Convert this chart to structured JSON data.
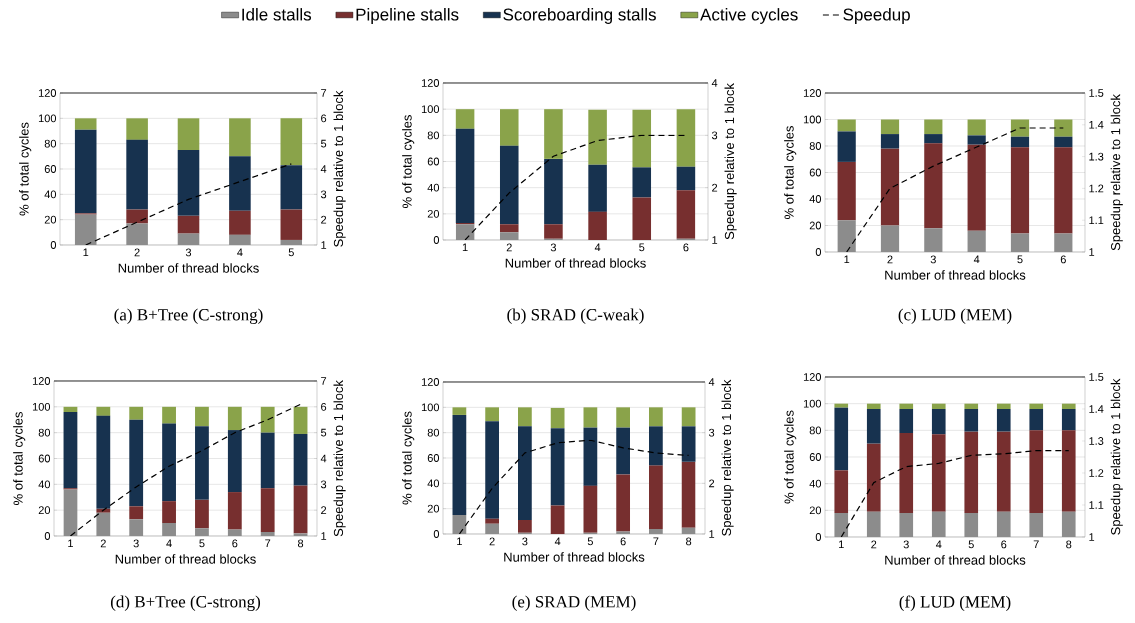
{
  "chart_data": [
    {
      "type": "bar",
      "stacked": true,
      "title": "(a) B+Tree (C-strong)",
      "xlabel": "Number of thread blocks",
      "ylabel": "% of total cycles",
      "y2label": "Speedup relative to 1 block",
      "categories": [
        "1",
        "2",
        "3",
        "4",
        "5"
      ],
      "ylim": [
        0,
        120
      ],
      "yticks": [
        0,
        20,
        40,
        60,
        80,
        100,
        120
      ],
      "y2lim": [
        1,
        7
      ],
      "y2ticks": [
        1,
        2,
        3,
        4,
        5,
        6,
        7
      ],
      "grid": "y",
      "legend": "top",
      "series": [
        {
          "name": "Idle stalls",
          "color": "#8c8c8c",
          "values": [
            24,
            17,
            9,
            8,
            4
          ]
        },
        {
          "name": "Pipeline stalls",
          "color": "#772f2f",
          "values": [
            1,
            11,
            14,
            19,
            24
          ]
        },
        {
          "name": "Scoreboarding stalls",
          "color": "#17324f",
          "values": [
            66,
            55,
            52,
            43,
            35
          ]
        },
        {
          "name": "Active cycles",
          "color": "#8aa34a",
          "values": [
            9,
            17,
            25,
            30,
            37
          ]
        },
        {
          "name": "Speedup",
          "type": "line",
          "axis": "y2",
          "color": "#000000",
          "line_style": "dashed",
          "marker": "none",
          "values": [
            1,
            1.9,
            2.8,
            3.5,
            4.2
          ]
        }
      ]
    },
    {
      "type": "bar",
      "stacked": true,
      "title": "(b) SRAD (C-weak)",
      "xlabel": "Number of thread blocks",
      "ylabel": "% of total cycles",
      "y2label": "Speedup relative to 1 block",
      "categories": [
        "1",
        "2",
        "3",
        "4",
        "5",
        "6"
      ],
      "ylim": [
        0,
        120
      ],
      "yticks": [
        0,
        20,
        40,
        60,
        80,
        100,
        120
      ],
      "y2lim": [
        1,
        4
      ],
      "y2ticks": [
        1,
        2,
        3,
        4
      ],
      "grid": "y",
      "series": [
        {
          "color": "#8c8c8c",
          "values": [
            12,
            6,
            1,
            null,
            null,
            1
          ]
        },
        {
          "color": "#772f2f",
          "values": [
            1,
            6,
            11,
            21.5,
            32.5,
            37
          ]
        },
        {
          "color": "#17324f",
          "values": [
            72,
            60,
            50,
            36,
            23,
            18
          ]
        },
        {
          "color": "#8aa34a",
          "values": [
            15,
            28,
            38,
            42,
            44,
            44
          ]
        },
        {
          "type": "line",
          "axis": "y2",
          "color": "#000000",
          "line_style": "dashed",
          "marker": "none",
          "values": [
            1,
            1.9,
            2.6,
            2.9,
            3.0,
            3.0
          ]
        }
      ]
    },
    {
      "type": "bar",
      "stacked": true,
      "title": "(c) LUD (MEM)",
      "xlabel": "Number of thread blocks",
      "ylabel": "% of total cycles",
      "y2label": "Speedup relative to 1 block",
      "categories": [
        "1",
        "2",
        "3",
        "4",
        "5",
        "6"
      ],
      "ylim": [
        0,
        120
      ],
      "yticks": [
        0,
        20,
        40,
        60,
        80,
        100,
        120
      ],
      "y2lim": [
        1,
        1.5
      ],
      "y2ticks": [
        1,
        1.1,
        1.2,
        1.3,
        1.4,
        1.5
      ],
      "grid": "y",
      "series": [
        {
          "color": "#8c8c8c",
          "values": [
            24,
            20,
            18,
            16,
            14,
            14
          ]
        },
        {
          "color": "#772f2f",
          "values": [
            44,
            58,
            64,
            65,
            65,
            65
          ]
        },
        {
          "color": "#17324f",
          "values": [
            23,
            11,
            7,
            7,
            8,
            8
          ]
        },
        {
          "color": "#8aa34a",
          "values": [
            9,
            11,
            11,
            12,
            13,
            13
          ]
        },
        {
          "type": "line",
          "axis": "y2",
          "color": "#000000",
          "line_style": "dashed",
          "marker": "none",
          "values": [
            1,
            1.2,
            1.27,
            1.33,
            1.39,
            1.39
          ]
        }
      ]
    },
    {
      "type": "bar",
      "stacked": true,
      "title": "(d) B+Tree (C-strong)",
      "xlabel": "Number of thread blocks",
      "ylabel": "% of total cycles",
      "y2label": "Speedup relative to 1 block",
      "categories": [
        "1",
        "2",
        "3",
        "4",
        "5",
        "6",
        "7",
        "8"
      ],
      "ylim": [
        0,
        120
      ],
      "yticks": [
        0,
        20,
        40,
        60,
        80,
        100,
        120
      ],
      "y2lim": [
        1,
        7
      ],
      "y2ticks": [
        1,
        2,
        3,
        4,
        5,
        6,
        7
      ],
      "grid": "y",
      "series": [
        {
          "color": "#8c8c8c",
          "values": [
            36,
            18,
            13,
            10,
            6,
            5,
            3,
            2
          ]
        },
        {
          "color": "#772f2f",
          "values": [
            1,
            3,
            10,
            17,
            22,
            29,
            34,
            37
          ]
        },
        {
          "color": "#17324f",
          "values": [
            59,
            72,
            67,
            60,
            57,
            48,
            43,
            40
          ]
        },
        {
          "color": "#8aa34a",
          "values": [
            4,
            7,
            10,
            13,
            15,
            18,
            20,
            21
          ]
        },
        {
          "type": "line",
          "axis": "y2",
          "color": "#000000",
          "line_style": "dashed",
          "marker": "none",
          "values": [
            1,
            2.0,
            2.9,
            3.7,
            4.3,
            5.0,
            5.5,
            6.1
          ]
        }
      ]
    },
    {
      "type": "bar",
      "stacked": true,
      "title": "(e) SRAD (MEM)",
      "xlabel": "Number of thread blocks",
      "ylabel": "% of total cycles",
      "y2label": "Speedup relative to 1 block",
      "categories": [
        "1",
        "2",
        "3",
        "4",
        "5",
        "6",
        "7",
        "8"
      ],
      "ylim": [
        0,
        120
      ],
      "yticks": [
        0,
        20,
        40,
        60,
        80,
        100,
        120
      ],
      "y2lim": [
        1,
        4
      ],
      "y2ticks": [
        1,
        2,
        3,
        4
      ],
      "grid": "y",
      "series": [
        {
          "color": "#8c8c8c",
          "values": [
            15,
            8,
            1,
            null,
            1,
            2,
            4,
            5
          ]
        },
        {
          "color": "#772f2f",
          "values": [
            0,
            4,
            10,
            22.5,
            37,
            45,
            50,
            52
          ]
        },
        {
          "color": "#17324f",
          "values": [
            79,
            77,
            74,
            61,
            46,
            37,
            31,
            28
          ]
        },
        {
          "color": "#8aa34a",
          "values": [
            6,
            11,
            15,
            16,
            16,
            16,
            15,
            15
          ]
        },
        {
          "type": "line",
          "axis": "y2",
          "color": "#000000",
          "line_style": "dashed",
          "marker": "none",
          "values": [
            1,
            1.9,
            2.6,
            2.8,
            2.85,
            2.7,
            2.6,
            2.55
          ]
        }
      ]
    },
    {
      "type": "bar",
      "stacked": true,
      "title": "(f) LUD (MEM)",
      "xlabel": "Number of thread blocks",
      "ylabel": "% of total cycles",
      "y2label": "Speedup relative to 1 block",
      "categories": [
        "1",
        "2",
        "3",
        "4",
        "5",
        "6",
        "7",
        "8"
      ],
      "ylim": [
        0,
        120
      ],
      "yticks": [
        0,
        20,
        40,
        60,
        80,
        100,
        120
      ],
      "y2lim": [
        1,
        1.5
      ],
      "y2ticks": [
        1,
        1.1,
        1.2,
        1.3,
        1.4,
        1.5
      ],
      "grid": "y",
      "series": [
        {
          "color": "#8c8c8c",
          "values": [
            18,
            19,
            18,
            19,
            18,
            19,
            18,
            19
          ]
        },
        {
          "color": "#772f2f",
          "values": [
            32,
            51,
            60,
            58,
            61,
            60,
            62,
            61
          ]
        },
        {
          "color": "#17324f",
          "values": [
            47,
            26,
            18,
            19,
            17,
            17,
            16,
            16
          ]
        },
        {
          "color": "#8aa34a",
          "values": [
            3,
            4,
            4,
            4,
            4,
            4,
            4,
            4
          ]
        },
        {
          "type": "line",
          "axis": "y2",
          "color": "#000000",
          "line_style": "dashed",
          "marker": "none",
          "values": [
            1,
            1.17,
            1.22,
            1.23,
            1.255,
            1.26,
            1.27,
            1.27
          ]
        }
      ]
    }
  ]
}
